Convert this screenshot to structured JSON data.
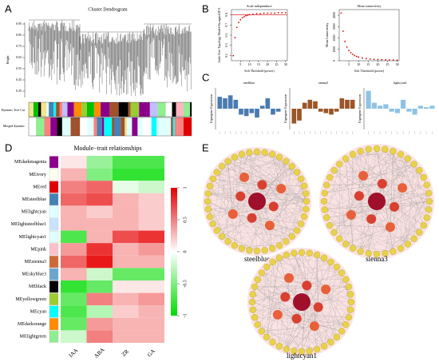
{
  "panels": {
    "A": {
      "label": "A",
      "title": "Cluster Dendrogram",
      "ylabel": "Height",
      "yticks": [
        "0.95",
        "0.85",
        "0.75",
        "0.65",
        "0.55",
        "0.45",
        "0.35"
      ],
      "rows": [
        "Dynamic Tree Cut",
        "Merged dynamic"
      ]
    },
    "B": {
      "label": "B",
      "fit": {
        "title": "Scale independence",
        "ylabel": "Scale Free Topology Model Fit,signed R^2",
        "xlabel": "Soft Threshold (power)",
        "xlim": [
          0,
          31
        ],
        "ylim": [
          0,
          1
        ],
        "xticks": [
          5,
          10,
          15,
          20,
          25,
          30
        ],
        "yticks": [
          0.1,
          0.3,
          0.5,
          0.7,
          0.9
        ],
        "cutoff": 0.9,
        "x": [
          1,
          2,
          3,
          4,
          5,
          6,
          7,
          8,
          9,
          10,
          12,
          14,
          16,
          18,
          20,
          22,
          24,
          26,
          28,
          30
        ],
        "values": [
          0.1,
          0.45,
          0.65,
          0.75,
          0.8,
          0.84,
          0.86,
          0.88,
          0.89,
          0.9,
          0.91,
          0.92,
          0.92,
          0.93,
          0.93,
          0.93,
          0.93,
          0.94,
          0.94,
          0.94
        ]
      },
      "connectivity": {
        "title": "Mean connectivity",
        "ylabel": "Mean Connectivity",
        "xlabel": "Soft Threshold (power)",
        "xlim": [
          0,
          31
        ],
        "ylim": [
          0,
          4500
        ],
        "xticks": [
          5,
          10,
          15,
          20,
          25,
          30
        ],
        "yticks": [
          0,
          1000,
          2000,
          3000,
          4000
        ],
        "x": [
          1,
          2,
          3,
          4,
          5,
          6,
          7,
          8,
          9,
          10,
          12,
          14,
          16,
          18,
          20,
          22,
          24,
          26,
          28,
          30
        ],
        "values": [
          4200,
          2600,
          1700,
          1200,
          900,
          700,
          560,
          460,
          380,
          320,
          240,
          190,
          150,
          125,
          105,
          90,
          78,
          68,
          60,
          54
        ]
      }
    },
    "C": {
      "label": "C",
      "ylabel": "Eigengene Expression",
      "ylim": [
        -0.7,
        0.7
      ],
      "modules": [
        {
          "name": "steelblue",
          "color": "#4a7bb0",
          "values": [
            0.4,
            0.35,
            0.45,
            0.3,
            -0.2,
            -0.25,
            -0.15,
            -0.3,
            0.1,
            0.35,
            -0.2,
            -0.1
          ]
        },
        {
          "name": "sienna3",
          "color": "#9c5528",
          "values": [
            -0.5,
            -0.4,
            0.2,
            0.3,
            0.25,
            -0.1,
            -0.15,
            -0.2,
            -0.1,
            0.35,
            0.3,
            0.3
          ]
        },
        {
          "name": "lightcyan1",
          "color": "#8fc3e6",
          "values": [
            0.6,
            0.2,
            0.1,
            0.15,
            -0.1,
            -0.15,
            0.3,
            -0.1,
            -0.2,
            0.1,
            0.05,
            0.1
          ]
        }
      ]
    },
    "D": {
      "label": "D",
      "title": "Module−trait relationships",
      "traits": [
        "IAA",
        "ABA",
        "ZR",
        "GA"
      ],
      "ylim": [
        -1,
        1
      ],
      "colorbar_ticks": [
        1,
        0.5,
        0,
        -0.5,
        -1
      ],
      "modules": [
        {
          "name": "MEdarkmagenta",
          "color": "#8b008b",
          "values": [
            0.1,
            -0.4,
            -0.7,
            -0.7
          ]
        },
        {
          "name": "MEivory",
          "color": "#fffff0",
          "values": [
            0.3,
            -0.5,
            -0.8,
            -0.8
          ]
        },
        {
          "name": "MEred",
          "color": "#e00000",
          "values": [
            0.5,
            0.6,
            -0.1,
            -0.2
          ]
        },
        {
          "name": "MEsteelblue",
          "color": "#4682b4",
          "values": [
            0.6,
            0.7,
            0.3,
            0.2
          ]
        },
        {
          "name": "MElightcyan",
          "color": "#e0ffff",
          "values": [
            0.3,
            0.2,
            0.3,
            0.2
          ]
        },
        {
          "name": "MElightsteelblue1",
          "color": "#cae1ff",
          "values": [
            0.3,
            0.3,
            0.3,
            0.2
          ]
        },
        {
          "name": "MElightcyan1",
          "color": "#e0ffff",
          "values": [
            -0.7,
            0.3,
            0.7,
            0.8
          ]
        },
        {
          "name": "MEpink",
          "color": "#ffc0cb",
          "values": [
            0.4,
            0.8,
            0.3,
            0.4
          ]
        },
        {
          "name": "MEsienna3",
          "color": "#cd6839",
          "values": [
            0.6,
            0.9,
            0.3,
            0.3
          ]
        },
        {
          "name": "MEskyblue3",
          "color": "#6ca6cd",
          "values": [
            0.3,
            -0.2,
            -0.6,
            -0.6
          ]
        },
        {
          "name": "MEblack",
          "color": "#000000",
          "values": [
            -0.8,
            -0.6,
            0.1,
            0.1
          ]
        },
        {
          "name": "MEyellowgreen",
          "color": "#9acd32",
          "values": [
            -0.6,
            0.5,
            0.3,
            0.4
          ]
        },
        {
          "name": "MEcyan",
          "color": "#00ffff",
          "values": [
            -0.7,
            -0.3,
            0.2,
            0.3
          ]
        },
        {
          "name": "MEdarkorange",
          "color": "#ff8c00",
          "values": [
            -0.6,
            0.4,
            0.3,
            0.3
          ]
        },
        {
          "name": "MElightgreen",
          "color": "#90ee90",
          "values": [
            -0.2,
            0.5,
            0.3,
            0.3
          ]
        }
      ]
    },
    "E": {
      "label": "E",
      "networks": [
        "steelblue",
        "sienna3",
        "lightcyan1"
      ]
    }
  }
}
